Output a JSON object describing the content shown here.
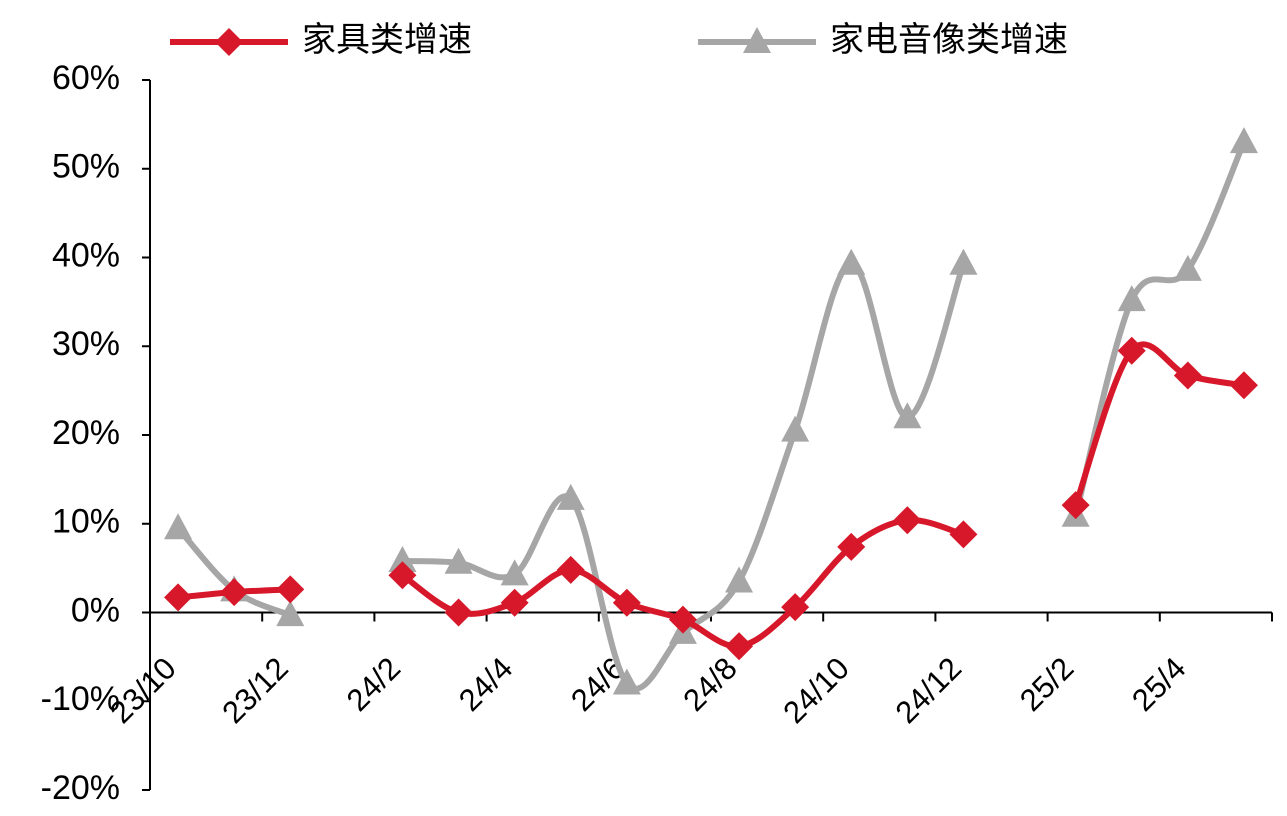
{
  "chart_data": {
    "type": "line",
    "categories": [
      "23/10",
      null,
      "23/12",
      null,
      "24/2",
      null,
      "24/4",
      null,
      "24/6",
      null,
      "24/8",
      null,
      "24/10",
      null,
      "24/12",
      null,
      "25/2",
      null,
      "25/4",
      null
    ],
    "series": [
      {
        "name": "家具类增速",
        "color": "#d7182a",
        "marker": "diamond",
        "values": [
          1.7,
          2.3,
          2.6,
          null,
          4.2,
          0,
          1.1,
          4.8,
          1.1,
          -0.8,
          -3.8,
          0.6,
          7.4,
          10.4,
          8.8,
          null,
          12.1,
          29.5,
          26.7,
          25.6
        ]
      },
      {
        "name": "家电音像类增速",
        "color": "#a6a6a6",
        "marker": "triangle",
        "values": [
          9.5,
          2.5,
          -0.3,
          null,
          5.8,
          5.6,
          4.3,
          12.8,
          -8,
          -2.3,
          3.5,
          20.5,
          39.3,
          22,
          39.3,
          null,
          10.9,
          35.2,
          38.6,
          53
        ]
      }
    ],
    "ylim": [
      -20,
      60
    ],
    "yticks": [
      {
        "value": -20,
        "label": "-20%"
      },
      {
        "value": -10,
        "label": "-10%"
      },
      {
        "value": 0,
        "label": "0%"
      },
      {
        "value": 10,
        "label": "10%"
      },
      {
        "value": 20,
        "label": "20%"
      },
      {
        "value": 30,
        "label": "30%"
      },
      {
        "value": 40,
        "label": "40%"
      },
      {
        "value": 50,
        "label": "50%"
      },
      {
        "value": 60,
        "label": "60%"
      }
    ],
    "grid": false
  }
}
